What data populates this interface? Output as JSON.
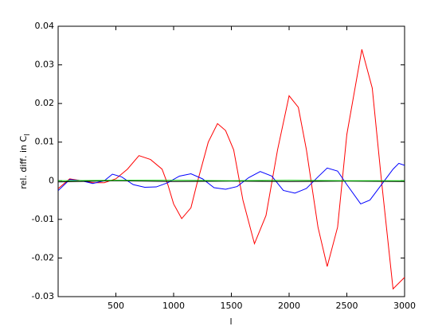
{
  "chart_data": {
    "type": "line",
    "xlabel": "l",
    "ylabel": {
      "text": "rel. diff. in C",
      "subscript": "l"
    },
    "xlim": [
      0,
      3000
    ],
    "ylim": [
      -0.03,
      0.04
    ],
    "xticks": [
      500,
      1000,
      1500,
      2000,
      2500,
      3000
    ],
    "yticks": [
      -0.03,
      -0.02,
      -0.01,
      0,
      0.01,
      0.02,
      0.03,
      0.04
    ],
    "grid": false,
    "series": [
      {
        "color": "#ff0000",
        "x": [
          2,
          100,
          200,
          300,
          400,
          500,
          600,
          700,
          800,
          900,
          950,
          1000,
          1070,
          1150,
          1200,
          1300,
          1380,
          1450,
          1520,
          1600,
          1700,
          1800,
          1900,
          2000,
          2080,
          2150,
          2250,
          2330,
          2420,
          2500,
          2630,
          2720,
          2800,
          2900,
          3000
        ],
        "values": [
          -0.002,
          0.0005,
          0,
          -0.0005,
          -0.0005,
          0.0005,
          0.003,
          0.0065,
          0.0055,
          0.003,
          -0.001,
          -0.006,
          -0.0098,
          -0.007,
          -0.001,
          0.01,
          0.0148,
          0.013,
          0.008,
          -0.005,
          -0.0163,
          -0.009,
          0.008,
          0.022,
          0.019,
          0.008,
          -0.012,
          -0.0222,
          -0.012,
          0.012,
          0.034,
          0.024,
          0,
          -0.028,
          -0.025
        ]
      },
      {
        "color": "#0000ff",
        "x": [
          2,
          100,
          200,
          300,
          400,
          470,
          550,
          650,
          750,
          850,
          950,
          1050,
          1150,
          1250,
          1350,
          1450,
          1550,
          1650,
          1750,
          1850,
          1950,
          2050,
          2150,
          2250,
          2330,
          2420,
          2500,
          2620,
          2700,
          2800,
          2900,
          2950,
          3000
        ],
        "values": [
          -0.0025,
          0.0003,
          0,
          -0.0007,
          0,
          0.0017,
          0.001,
          -0.001,
          -0.0017,
          -0.0016,
          -0.0005,
          0.0012,
          0.0018,
          0.0005,
          -0.0018,
          -0.0022,
          -0.0015,
          0.0008,
          0.0024,
          0.0012,
          -0.0025,
          -0.0032,
          -0.002,
          0.001,
          0.0033,
          0.0025,
          -0.001,
          -0.006,
          -0.005,
          -0.001,
          0.003,
          0.0045,
          0.004
        ]
      },
      {
        "color": "#000000",
        "x": [
          2,
          500,
          1000,
          1500,
          2000,
          2500,
          3000
        ],
        "values": [
          -0.0003,
          0,
          -0.0002,
          -0.0001,
          -0.0002,
          -0.0001,
          -0.0002
        ]
      },
      {
        "color": "#00cc00",
        "x": [
          2,
          500,
          1000,
          1500,
          2000,
          2500,
          3000
        ],
        "values": [
          0,
          0.0001,
          0.0001,
          0,
          0.0001,
          0,
          0
        ]
      }
    ]
  }
}
